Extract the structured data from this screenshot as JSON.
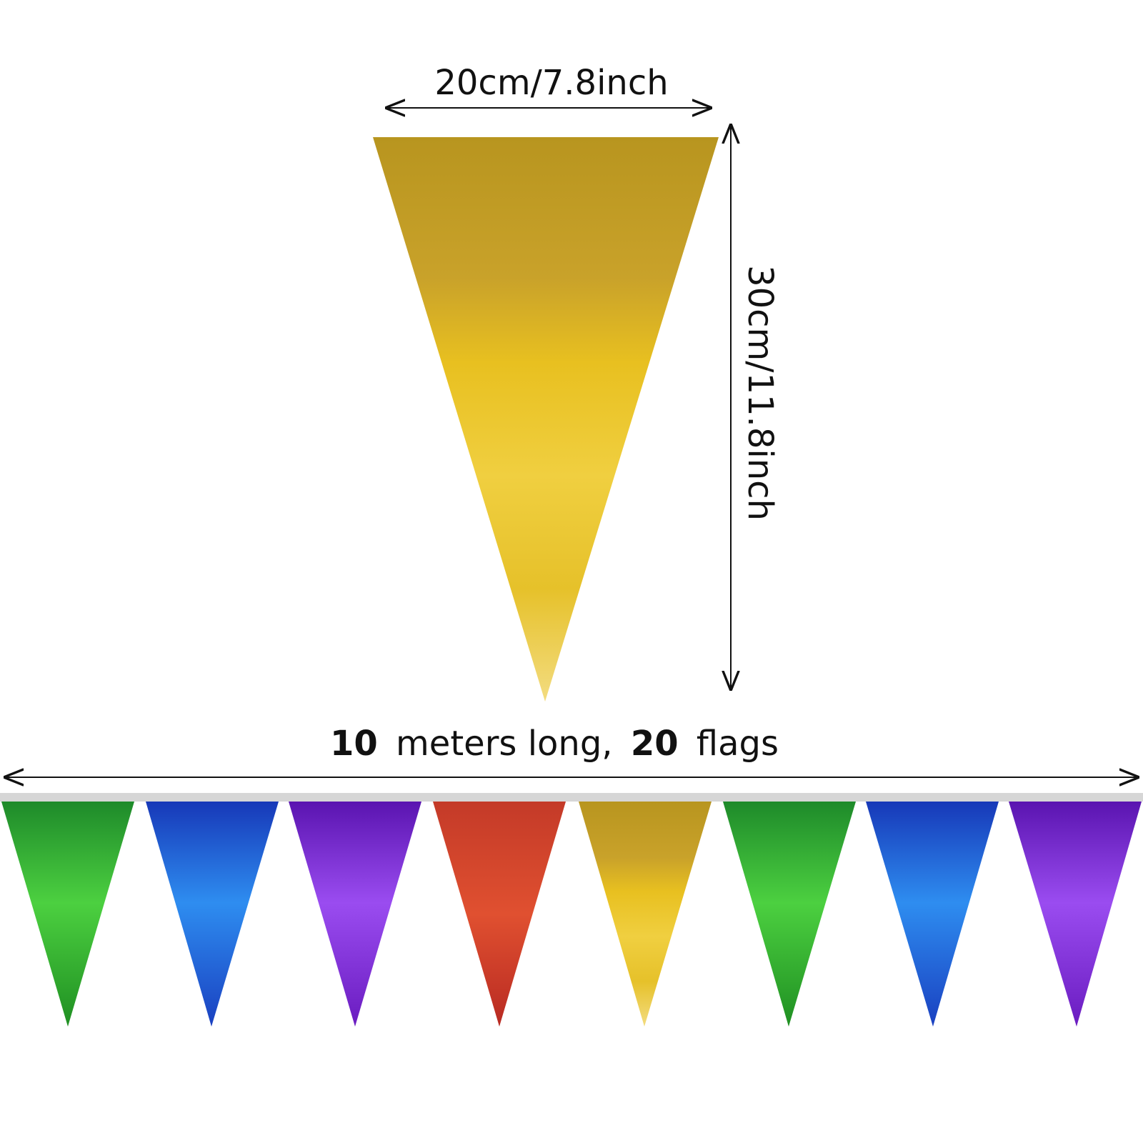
{
  "flag_size": {
    "width_label": "20cm/7.8inch",
    "height_label": "30cm/11.8inch"
  },
  "length_label": {
    "parts": [
      "10",
      "meters long,",
      "20",
      "flags"
    ]
  }
}
